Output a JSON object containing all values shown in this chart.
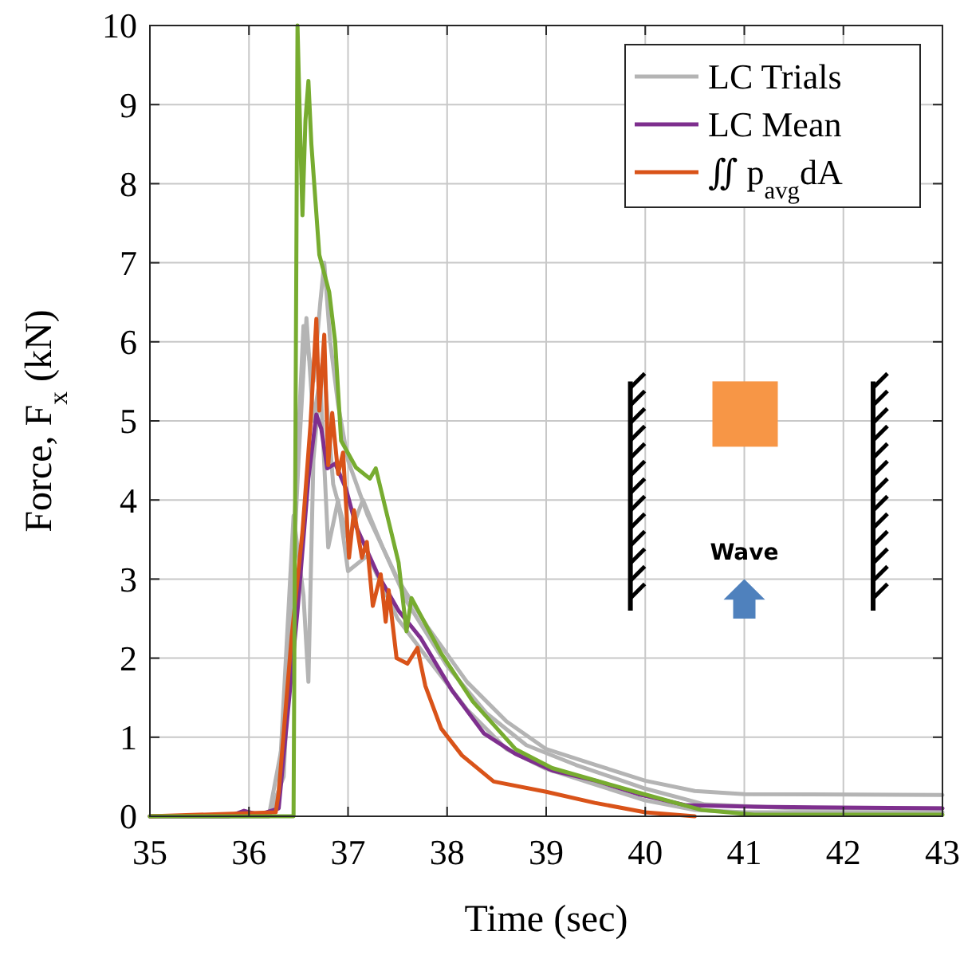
{
  "chart_data": {
    "type": "line",
    "xlabel": "Time (sec)",
    "ylabel": "Force, F$_{x}$ (kN)",
    "xlim": [
      35,
      43
    ],
    "ylim": [
      0,
      10
    ],
    "xticks": [
      35,
      36,
      37,
      38,
      39,
      40,
      41,
      42,
      43
    ],
    "yticks": [
      0,
      1,
      2,
      3,
      4,
      5,
      6,
      7,
      8,
      9,
      10
    ],
    "grid": true,
    "legend": "top right",
    "line_style": "solid",
    "marker": "none",
    "annotations": [
      "Wave"
    ],
    "series": [
      {
        "name": "LC Trials",
        "color": "#b4b4b4",
        "x": [
          35,
          36.2,
          36.35,
          36.45,
          36.55,
          36.65,
          36.72,
          36.76,
          36.82,
          36.9,
          37.0,
          37.2,
          37.5,
          37.8,
          38.2,
          38.6,
          39.0,
          39.5,
          40.0,
          40.5,
          41,
          43
        ],
        "values": [
          0,
          0,
          1,
          3.5,
          6.2,
          5.5,
          6.5,
          7.0,
          6.0,
          5.2,
          4.5,
          3.8,
          3.0,
          2.4,
          1.7,
          1.2,
          0.85,
          0.65,
          0.45,
          0.32,
          0.28,
          0.27
        ]
      },
      {
        "color": "#b4b4b4",
        "x": [
          35,
          36.2,
          36.3,
          36.45,
          36.55,
          36.6,
          36.65,
          36.72,
          36.8,
          36.9,
          37.0,
          37.2,
          37.5,
          37.8,
          38.2,
          38.6,
          39,
          39.5,
          40,
          40.5,
          41,
          43
        ],
        "values": [
          0,
          0,
          0.3,
          3.8,
          2.8,
          1.7,
          4.5,
          5.5,
          3.4,
          4.0,
          3.1,
          3.3,
          2.5,
          2.0,
          1.35,
          0.85,
          0.6,
          0.4,
          0.2,
          0.08,
          0.05,
          0.05
        ]
      },
      {
        "color": "#b4b4b4",
        "x": [
          35,
          36.2,
          36.35,
          36.5,
          36.58,
          36.65,
          36.75,
          36.85,
          37,
          37.15,
          37.35,
          37.6,
          38.0,
          38.4,
          38.8,
          39.3,
          40,
          40.6,
          41.5,
          43
        ],
        "values": [
          0,
          0,
          0.5,
          4.5,
          6.3,
          5.0,
          5.8,
          4.2,
          3.5,
          4.0,
          3.4,
          2.7,
          1.9,
          1.3,
          0.9,
          0.65,
          0.35,
          0.15,
          0.1,
          0.1
        ]
      },
      {
        "name": "LC Mean",
        "color": "#7e2f8e",
        "x": [
          35,
          35.8,
          35.95,
          36.1,
          36.3,
          36.49,
          36.6,
          36.68,
          36.73,
          36.79,
          36.87,
          36.98,
          37.08,
          37.3,
          37.51,
          37.73,
          38.05,
          38.37,
          38.69,
          39.06,
          39.5,
          39.93,
          40.41,
          41.1,
          43
        ],
        "values": [
          0,
          0,
          0.07,
          0.02,
          0.1,
          2.6,
          4.27,
          5.08,
          4.9,
          4.4,
          4.46,
          4.14,
          3.67,
          3.06,
          2.6,
          2.26,
          1.59,
          1.05,
          0.79,
          0.58,
          0.45,
          0.28,
          0.14,
          0.12,
          0.1
        ]
      },
      {
        "name": "∬ p$_{avg}$dA",
        "color": "#d95319",
        "x": [
          35,
          36.27,
          36.3,
          36.43,
          36.54,
          36.62,
          36.68,
          36.71,
          36.76,
          36.8,
          36.84,
          36.9,
          36.95,
          37.01,
          37.06,
          37.14,
          37.19,
          37.25,
          37.33,
          37.38,
          37.41,
          37.49,
          37.6,
          37.7,
          37.78,
          37.94,
          38.15,
          38.47,
          39.0,
          39.49,
          40.0,
          40.5
        ],
        "values": [
          0,
          0.05,
          0.3,
          2.26,
          3.6,
          4.94,
          6.29,
          5.13,
          6.09,
          4.44,
          5.1,
          4.33,
          4.6,
          3.27,
          3.87,
          3.27,
          3.47,
          2.66,
          3.06,
          2.46,
          2.86,
          2.0,
          1.93,
          2.13,
          1.65,
          1.11,
          0.77,
          0.44,
          0.31,
          0.17,
          0.05,
          0
        ]
      },
      {
        "color": "#77ac30",
        "x": [
          35,
          36.45,
          36.49,
          36.52,
          36.54,
          36.57,
          36.6,
          36.63,
          36.71,
          36.81,
          36.87,
          36.93,
          37.08,
          37.22,
          37.28,
          37.51,
          37.59,
          37.64,
          37.94,
          38.26,
          38.69,
          39.06,
          39.93,
          40.57,
          41.1,
          43
        ],
        "values": [
          0,
          0,
          10,
          8.5,
          7.6,
          8.8,
          9.3,
          8.5,
          7.1,
          6.63,
          6.0,
          4.75,
          4.41,
          4.27,
          4.4,
          3.21,
          2.34,
          2.76,
          2.06,
          1.45,
          0.85,
          0.61,
          0.3,
          0.08,
          0.02,
          0.02
        ]
      }
    ]
  }
}
